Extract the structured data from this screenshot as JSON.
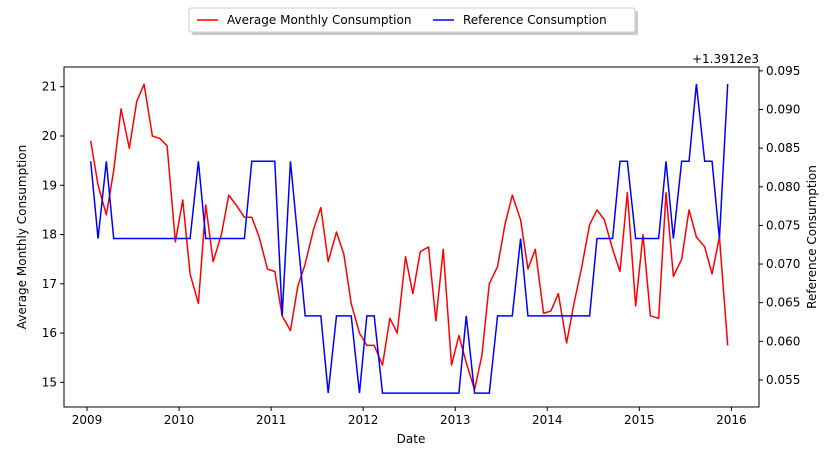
{
  "chart_data": {
    "type": "line",
    "xlabel": "Date",
    "ylabel": "Average Monthly Consumption",
    "y2label": "Reference Consumption",
    "y2_offset_text": "+1.3912e3",
    "xlim": [
      2008.75,
      2016.3
    ],
    "ylim": [
      14.5,
      21.4
    ],
    "y2lim": [
      0.0515,
      0.0955
    ],
    "x_ticks": [
      "2009",
      "2010",
      "2011",
      "2012",
      "2013",
      "2014",
      "2015",
      "2016"
    ],
    "y_ticks": [
      "15",
      "16",
      "17",
      "18",
      "19",
      "20",
      "21"
    ],
    "y2_ticks": [
      "0.055",
      "0.060",
      "0.065",
      "0.070",
      "0.075",
      "0.080",
      "0.085",
      "0.090",
      "0.095"
    ],
    "legend_placement": "top-center, above plot",
    "grid": false,
    "series": [
      {
        "name": "Average Monthly Consumption",
        "axis": "left",
        "color": "#ff0000",
        "x": [
          2009.04,
          2009.12,
          2009.21,
          2009.29,
          2009.37,
          2009.46,
          2009.54,
          2009.62,
          2009.71,
          2009.79,
          2009.87,
          2009.96,
          2010.04,
          2010.12,
          2010.21,
          2010.29,
          2010.37,
          2010.46,
          2010.54,
          2010.62,
          2010.71,
          2010.79,
          2010.87,
          2010.96,
          2011.04,
          2011.12,
          2011.21,
          2011.29,
          2011.37,
          2011.46,
          2011.54,
          2011.62,
          2011.71,
          2011.79,
          2011.87,
          2011.96,
          2012.04,
          2012.12,
          2012.21,
          2012.29,
          2012.37,
          2012.46,
          2012.54,
          2012.62,
          2012.71,
          2012.79,
          2012.87,
          2012.96,
          2013.04,
          2013.12,
          2013.21,
          2013.29,
          2013.37,
          2013.46,
          2013.54,
          2013.62,
          2013.71,
          2013.79,
          2013.87,
          2013.96,
          2014.04,
          2014.12,
          2014.21,
          2014.29,
          2014.37,
          2014.46,
          2014.54,
          2014.62,
          2014.71,
          2014.79,
          2014.87,
          2014.96,
          2015.04,
          2015.12,
          2015.21,
          2015.29,
          2015.37,
          2015.46,
          2015.54,
          2015.62,
          2015.71,
          2015.79,
          2015.87,
          2015.96
        ],
        "values": [
          19.9,
          19.0,
          18.4,
          19.3,
          20.55,
          19.75,
          20.7,
          21.05,
          20.0,
          19.95,
          19.8,
          17.85,
          18.7,
          17.2,
          16.6,
          18.6,
          17.45,
          18.0,
          18.8,
          18.6,
          18.35,
          18.35,
          17.95,
          17.3,
          17.25,
          16.35,
          16.05,
          16.95,
          17.4,
          18.1,
          18.55,
          17.45,
          18.05,
          17.6,
          16.6,
          16.0,
          15.75,
          15.75,
          15.35,
          16.3,
          16.0,
          17.55,
          16.8,
          17.65,
          17.75,
          16.25,
          17.7,
          15.35,
          15.95,
          15.4,
          14.85,
          15.55,
          17.0,
          17.35,
          18.2,
          18.8,
          18.3,
          17.3,
          17.7,
          16.4,
          16.45,
          16.8,
          15.8,
          16.6,
          17.3,
          18.2,
          18.5,
          18.3,
          17.7,
          17.25,
          18.85,
          16.55,
          18.0,
          16.35,
          16.3,
          18.85,
          17.15,
          17.5,
          18.5,
          17.95,
          17.75,
          17.2,
          17.95,
          15.75
        ]
      },
      {
        "name": "Reference Consumption",
        "axis": "right",
        "color": "#0000ff",
        "x": [
          2009.04,
          2009.12,
          2009.21,
          2009.29,
          2009.37,
          2009.46,
          2009.54,
          2009.62,
          2009.71,
          2009.79,
          2009.87,
          2009.96,
          2010.04,
          2010.12,
          2010.21,
          2010.29,
          2010.37,
          2010.46,
          2010.54,
          2010.62,
          2010.71,
          2010.79,
          2010.87,
          2010.96,
          2011.04,
          2011.12,
          2011.21,
          2011.29,
          2011.37,
          2011.46,
          2011.54,
          2011.62,
          2011.71,
          2011.79,
          2011.87,
          2011.96,
          2012.04,
          2012.12,
          2012.21,
          2012.29,
          2012.37,
          2012.46,
          2012.54,
          2012.62,
          2012.71,
          2012.79,
          2012.87,
          2012.96,
          2013.04,
          2013.12,
          2013.21,
          2013.29,
          2013.37,
          2013.46,
          2013.54,
          2013.62,
          2013.71,
          2013.79,
          2013.87,
          2013.96,
          2014.04,
          2014.12,
          2014.21,
          2014.29,
          2014.37,
          2014.46,
          2014.54,
          2014.62,
          2014.71,
          2014.79,
          2014.87,
          2014.96,
          2015.04,
          2015.12,
          2015.21,
          2015.29,
          2015.37,
          2015.46,
          2015.54,
          2015.62,
          2015.71,
          2015.79,
          2015.87,
          2015.96
        ],
        "values": [
          0.0833,
          0.0733,
          0.0833,
          0.0733,
          0.0733,
          0.0733,
          0.0733,
          0.0733,
          0.0733,
          0.0733,
          0.0733,
          0.0733,
          0.0733,
          0.0733,
          0.0833,
          0.0733,
          0.0733,
          0.0733,
          0.0733,
          0.0733,
          0.0733,
          0.0833,
          0.0833,
          0.0833,
          0.0833,
          0.0633,
          0.0833,
          0.0733,
          0.0633,
          0.0633,
          0.0633,
          0.0533,
          0.0633,
          0.0633,
          0.0633,
          0.0533,
          0.0633,
          0.0633,
          0.0533,
          0.0533,
          0.0533,
          0.0533,
          0.0533,
          0.0533,
          0.0533,
          0.0533,
          0.0533,
          0.0533,
          0.0533,
          0.0633,
          0.0533,
          0.0533,
          0.0533,
          0.0633,
          0.0633,
          0.0633,
          0.0733,
          0.0633,
          0.0633,
          0.0633,
          0.0633,
          0.0633,
          0.0633,
          0.0633,
          0.0633,
          0.0633,
          0.0733,
          0.0733,
          0.0733,
          0.0833,
          0.0833,
          0.0733,
          0.0733,
          0.0733,
          0.0733,
          0.0833,
          0.0733,
          0.0833,
          0.0833,
          0.0933,
          0.0833,
          0.0833,
          0.0733,
          0.0933
        ]
      }
    ]
  }
}
